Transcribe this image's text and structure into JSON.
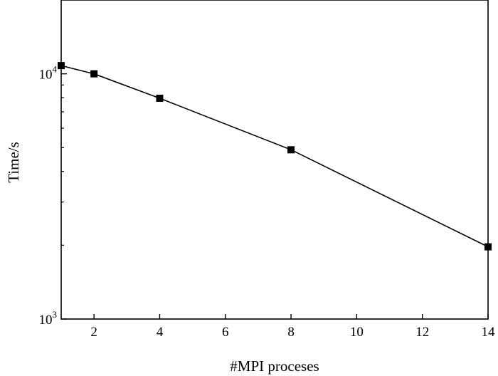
{
  "chart_data": {
    "type": "line",
    "title": "",
    "xlabel": "#MPI proceses",
    "ylabel": "Time/s",
    "x_ticks": [
      "2",
      "4",
      "6",
      "8",
      "10",
      "12",
      "14"
    ],
    "y_ticks": [
      {
        "base": "10",
        "exp": "3",
        "value": 1000
      },
      {
        "base": "10",
        "exp": "4",
        "value": 10000
      }
    ],
    "xlim": [
      1,
      14
    ],
    "ylim": [
      1000,
      20000
    ],
    "y_scale": "log",
    "grid": false,
    "legend": "none",
    "series": [
      {
        "marker": "square",
        "color": "#000000",
        "x": [
          1,
          2,
          4,
          8,
          14
        ],
        "y": [
          10800,
          10000,
          7950,
          4900,
          1970
        ]
      }
    ]
  }
}
